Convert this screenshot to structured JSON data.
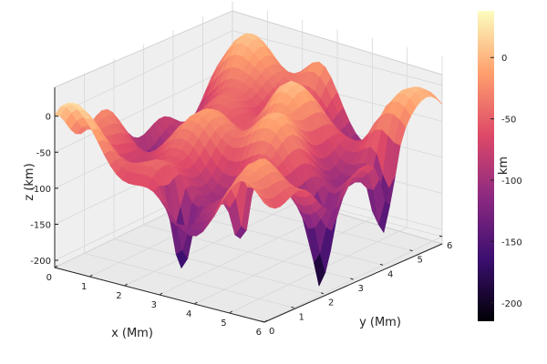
{
  "chart_data": {
    "type": "surface3d",
    "xlabel": "x (Mm)",
    "ylabel": "y (Mm)",
    "zlabel": "z (km)",
    "colorbar_label": "km",
    "xlim": [
      0,
      6
    ],
    "ylim": [
      0,
      6
    ],
    "zlim": [
      -210,
      40
    ],
    "x_ticks": [
      "0",
      "1",
      "2",
      "3",
      "4",
      "5",
      "6"
    ],
    "y_ticks": [
      "0",
      "1",
      "2",
      "3",
      "4",
      "5",
      "6"
    ],
    "z_ticks": [
      "0",
      "-50",
      "-100",
      "-150",
      "-200"
    ],
    "colorbar_ticks": [
      "0",
      "-50",
      "-100",
      "-150",
      "-200"
    ],
    "colorbar_range": [
      -215,
      38
    ],
    "colormap": "magma",
    "colormap_stops": [
      "#000004",
      "#3b0f70",
      "#8c2981",
      "#de4968",
      "#fe9f6d",
      "#fcfdbf"
    ],
    "grid": true,
    "surface_peaks": [
      {
        "x": 0.0,
        "y": 0.0,
        "z": 15
      },
      {
        "x": 2.5,
        "y": 6.0,
        "z": -10
      },
      {
        "x": 1.8,
        "y": 5.2,
        "z": 30
      },
      {
        "x": 3.0,
        "y": 4.0,
        "z": 25
      },
      {
        "x": 6.0,
        "y": 5.8,
        "z": 30
      },
      {
        "x": 2.2,
        "y": 3.0,
        "z": 10
      }
    ],
    "surface_troughs": [
      {
        "x": 4.5,
        "y": 1.0,
        "z": -160
      },
      {
        "x": 5.5,
        "y": 2.5,
        "z": -175
      },
      {
        "x": 5.8,
        "y": 4.2,
        "z": -210
      },
      {
        "x": 3.2,
        "y": 0.5,
        "z": -120
      },
      {
        "x": 4.8,
        "y": 5.2,
        "z": -130
      }
    ]
  }
}
